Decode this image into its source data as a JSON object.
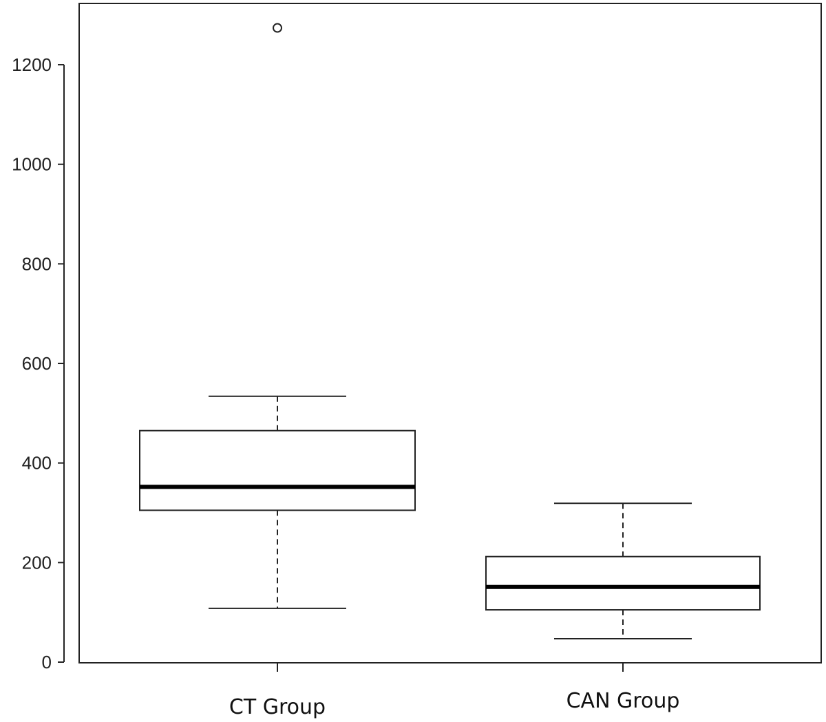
{
  "chart_data": {
    "type": "boxplot",
    "title": "",
    "xlabel": "",
    "ylabel": "",
    "ylim": [
      0,
      1300
    ],
    "yticks": [
      0,
      200,
      400,
      600,
      800,
      1000,
      1200
    ],
    "ytick_labels": [
      "0",
      "200",
      "400",
      "600",
      "800",
      "1000",
      "1200"
    ],
    "categories": [
      "CT Group",
      "CAN Group"
    ],
    "grid": false,
    "legend": "none",
    "boxes": [
      {
        "category": "CT Group",
        "whisker_low": 108,
        "q1": 305,
        "median": 352,
        "q3": 465,
        "whisker_high": 534,
        "outliers": [
          1274
        ]
      },
      {
        "category": "CAN Group",
        "whisker_low": 47,
        "q1": 105,
        "median": 151,
        "q3": 212,
        "whisker_high": 319,
        "outliers": []
      }
    ]
  }
}
